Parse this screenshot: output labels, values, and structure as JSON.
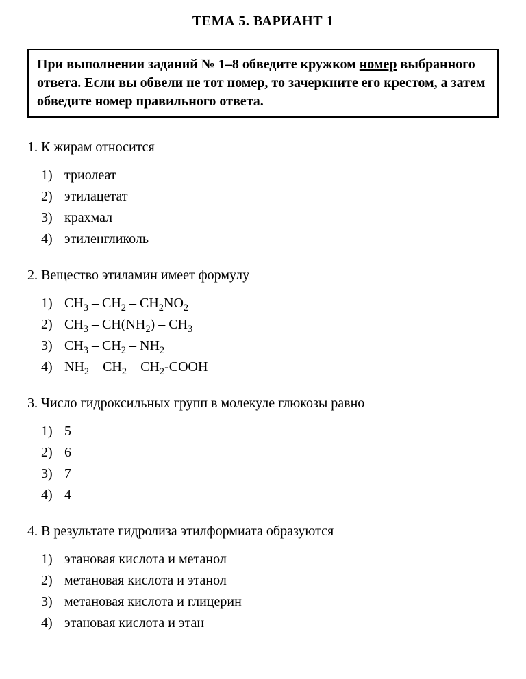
{
  "title": "ТЕМА 5. ВАРИАНТ 1",
  "instruction": {
    "part1": "При выполнении заданий № 1–8 обведите кружком ",
    "underlined": "номер",
    "part2": " выбранного ответа. Если вы обвели не тот номер, то зачеркните его крестом, а затем обведите номер правильного ответа."
  },
  "questions": [
    {
      "num": "1.",
      "text": "К жирам относится",
      "options": [
        {
          "n": "1)",
          "t": "триолеат"
        },
        {
          "n": "2)",
          "t": "этилацетат"
        },
        {
          "n": "3)",
          "t": "крахмал"
        },
        {
          "n": "4)",
          "t": "этиленгликоль"
        }
      ]
    },
    {
      "num": "2.",
      "text": "Вещество этиламин имеет формулу",
      "options": [
        {
          "n": "1)",
          "html": "CH<sub>3</sub> – CH<sub>2</sub> – CH<sub>2</sub>NO<sub>2</sub>"
        },
        {
          "n": "2)",
          "html": "CH<sub>3</sub> – CH(NH<sub>2</sub>) – CH<sub>3</sub>"
        },
        {
          "n": "3)",
          "html": "CH<sub>3</sub> – CH<sub>2</sub> – NH<sub>2</sub>"
        },
        {
          "n": "4)",
          "html": "NH<sub>2</sub> – CH<sub>2</sub> – CH<sub>2</sub>-COOH"
        }
      ]
    },
    {
      "num": "3.",
      "text": "Число гидроксильных групп в молекуле глюкозы равно",
      "options": [
        {
          "n": "1)",
          "t": " 5"
        },
        {
          "n": "2)",
          "t": "6"
        },
        {
          "n": "3)",
          "t": " 7"
        },
        {
          "n": "4)",
          "t": " 4"
        }
      ]
    },
    {
      "num": "4.",
      "text": "В результате гидролиза этилформиата образуются",
      "options": [
        {
          "n": "1)",
          "t": " этановая кислота и метанол"
        },
        {
          "n": "2)",
          "t": "  метановая кислота и этанол"
        },
        {
          "n": "3)",
          "t": " метановая кислота и глицерин"
        },
        {
          "n": "4)",
          "t": " этановая кислота и этан"
        }
      ]
    }
  ]
}
